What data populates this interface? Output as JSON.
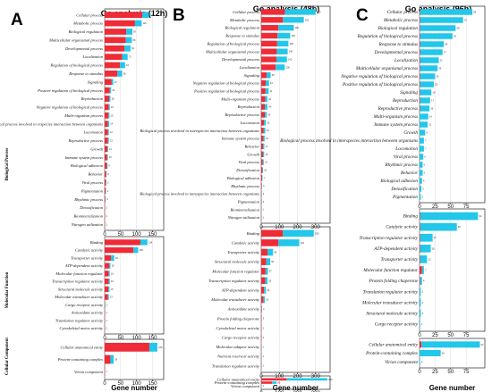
{
  "groups": [
    "Biological Process",
    "Molecular Function",
    "Cellular Component"
  ],
  "colors": {
    "up": "#ee2b36",
    "down": "#22c7ea"
  },
  "xlabel": "Gene number",
  "chart_data": [
    {
      "type": "bar",
      "letter": "A",
      "title": "Go analysis (12h)",
      "xlabel": "Gene number",
      "xticks": [
        0,
        50,
        100,
        150
      ],
      "xlim": [
        0,
        185
      ],
      "sections": [
        {
          "group": "Biological Process",
          "categories": [
            "Cellular process",
            "Metabolic process",
            "Biological regulation",
            "Multicellular organismal process",
            "Developmental process",
            "Localization",
            "Regulation of biological process",
            "Response to stimulus",
            "Signaling",
            "Positive regulation of biological process",
            "Reproduction",
            "Negative regulation of biological process",
            "Multi-organism process",
            "Biological process involved in erspecies interaction between organisms",
            "Locomotion",
            "Reproductive process",
            "Growth",
            "Immune system process",
            "Biological adhesion",
            "Behavior",
            "Viral process",
            "Pigmentation",
            "Rhythmic process",
            "Detoxification",
            "Biomineralization",
            "Nitrogen utilization"
          ],
          "series": [
            {
              "name": "up",
              "values": [
                118,
                95,
                68,
                66,
                62,
                55,
                48,
                40,
                22,
                16,
                14,
                13,
                12,
                10,
                10,
                10,
                9,
                8,
                7,
                5,
                4,
                3,
                2,
                1,
                1,
                1
              ]
            },
            {
              "name": "down",
              "values": [
                21,
                21,
                19,
                19,
                19,
                17,
                16,
                15,
                5,
                4,
                4,
                3,
                3,
                4,
                3,
                3,
                2,
                2,
                2,
                1,
                1,
                1,
                1,
                0,
                0,
                0
              ]
            }
          ]
        },
        {
          "group": "Molecular Function",
          "categories": [
            "Binding",
            "Catalytic activity",
            "Transporter activity",
            "ATP-dependent activity",
            "Molecular function regulator",
            "Transcription regulator activity",
            "Structural molecule activity",
            "Molecular transducer activity",
            "Cargo receptor activity",
            "Antioxidant activity",
            "Translation regulator activity",
            "Cytoskeletal motor activity"
          ],
          "series": [
            {
              "name": "up",
              "values": [
                112,
                90,
                20,
                14,
                13,
                13,
                12,
                10,
                1,
                1,
                1,
                1
              ]
            },
            {
              "name": "down",
              "values": [
                22,
                15,
                10,
                4,
                3,
                3,
                3,
                3,
                1,
                0,
                0,
                0
              ]
            }
          ]
        },
        {
          "group": "Cellular Component",
          "categories": [
            "Cellular anatomical entity",
            "Protein-containing complex",
            "Virion component"
          ],
          "series": [
            {
              "name": "up",
              "values": [
                140,
                18,
                1
              ]
            },
            {
              "name": "down",
              "values": [
                25,
                10,
                0
              ]
            }
          ]
        }
      ]
    },
    {
      "type": "bar",
      "letter": "B",
      "title": "Go analysis (48h)",
      "xlabel": "Gene number",
      "xticks": [
        0,
        100,
        200,
        300
      ],
      "xlim": [
        0,
        380
      ],
      "sections": [
        {
          "group": "Biological Process",
          "categories": [
            "Cellular process",
            "Metabolic process",
            "Biological regulation",
            "Response to stimulus",
            "Regulation of biological process",
            "Multicellular organismal process",
            "Developmental process",
            "Localization",
            "Signaling",
            "Negative regulation of biological process",
            "Positive regulation of biological process",
            "Multi-organism process",
            "Reproduction",
            "Reproductive process",
            "Locomotion",
            "Biological process involved in interspecies interaction between organisms",
            "Immune system process",
            "Behavior",
            "Growth",
            "Viral process",
            "Detoxification",
            "Biological adhesion",
            "Rhythmic process",
            "Biological process involved in intraspecies interaction between organisms",
            "Pigmentation",
            "Biomineralization",
            "Nitrogen utilization"
          ],
          "series": [
            {
              "name": "up",
              "values": [
                130,
                120,
                95,
                90,
                88,
                86,
                84,
                80,
                30,
                25,
                24,
                22,
                20,
                20,
                15,
                14,
                12,
                11,
                10,
                9,
                7,
                5,
                3,
                2,
                2,
                1,
                1
              ]
            },
            {
              "name": "down",
              "values": [
                170,
                115,
                85,
                70,
                62,
                60,
                58,
                50,
                22,
                18,
                17,
                12,
                14,
                10,
                10,
                9,
                7,
                6,
                6,
                5,
                3,
                2,
                1,
                1,
                1,
                0,
                0
              ]
            }
          ]
        },
        {
          "group": "Molecular Function",
          "categories": [
            "Binding",
            "Catalytic activity",
            "Transporter activity",
            "Structural molecule activity",
            "Molecular function regulator",
            "Transcription regulator activity",
            "ATP-dependent activity",
            "Molecular transducer activity",
            "Antioxidant activity",
            "Protein folding chaperone",
            "Cytoskeletal motor activity",
            "Cargo receptor activity",
            "Molecular adaptor activity",
            "Nutrient reservoir activity",
            "Translation regulator activity"
          ],
          "series": [
            {
              "name": "up",
              "values": [
                120,
                95,
                35,
                28,
                24,
                22,
                16,
                12,
                3,
                2,
                2,
                2,
                1,
                1,
                1
              ]
            },
            {
              "name": "down",
              "values": [
                170,
                115,
                30,
                22,
                13,
                13,
                10,
                8,
                1,
                1,
                0,
                0,
                0,
                0,
                0
              ]
            }
          ]
        },
        {
          "group": "Cellular Component",
          "categories": [
            "Cellular anatomical entity",
            "Protein-containing complex",
            "Virion component"
          ],
          "series": [
            {
              "name": "up",
              "values": [
                140,
                60,
                1
              ]
            },
            {
              "name": "down",
              "values": [
                225,
                25,
                0
              ]
            }
          ]
        }
      ]
    },
    {
      "type": "bar",
      "letter": "C",
      "title": "Go analysis (96h)",
      "xlabel": "Gene number",
      "xticks": [
        0,
        25,
        50,
        75
      ],
      "xlim": [
        0,
        105
      ],
      "sections": [
        {
          "group": "Biological Process",
          "categories": [
            "Cellular process",
            "Metabolic process",
            "Biological regulation",
            "Regulation of biological process",
            "Response to stimulus",
            "Developmental process",
            "Localization",
            "Multicellular organismal process",
            "Negative regulation of biological process",
            "Positive regulation of biological process",
            "Signaling",
            "Reproduction",
            "Reproductive process",
            "Multi-organism process",
            "Immune system process",
            "Growth",
            "Biological process involved in interspecies interaction between organisms",
            "Locomotion",
            "Viral process",
            "Rhythmic process",
            "Behavior",
            "Biological adhesion",
            "Detoxification",
            "Pigmentation"
          ],
          "series": [
            {
              "name": "up",
              "values": [
                1,
                1,
                1,
                1,
                1,
                1,
                1,
                1,
                1,
                1,
                1,
                1,
                1,
                0,
                0,
                0,
                0,
                0,
                0,
                0,
                0,
                0,
                0,
                0
              ]
            },
            {
              "name": "down",
              "values": [
                84,
                69,
                57,
                52,
                38,
                36,
                30,
                28,
                24,
                22,
                18,
                16,
                15,
                14,
                13,
                9,
                7,
                7,
                6,
                5,
                5,
                4,
                3,
                2
              ]
            }
          ]
        },
        {
          "group": "Molecular Function",
          "categories": [
            "Binding",
            "Catalytic activity",
            "Transcription regulator activity",
            "ATP-dependent activity",
            "Transporter activity",
            "Molecular function regulator",
            "Protein folding chaperone",
            "Translation regulator activity",
            "Molecular transducer activity",
            "Structural molecule activity",
            "Cargo receptor activity"
          ],
          "series": [
            {
              "name": "up",
              "values": [
                1,
                1,
                1,
                1,
                1,
                4,
                1,
                0,
                0,
                0,
                0
              ]
            },
            {
              "name": "down",
              "values": [
                93,
                59,
                20,
                17,
                11,
                3,
                3,
                2,
                2,
                2,
                1
              ]
            }
          ]
        },
        {
          "group": "Cellular Component",
          "categories": [
            "Cellular anatomical entity",
            "Protein-containing complex",
            "Virion component"
          ],
          "series": [
            {
              "name": "up",
              "values": [
                3,
                0,
                0
              ]
            },
            {
              "name": "down",
              "values": [
                94,
                34,
                1
              ]
            }
          ]
        }
      ]
    }
  ]
}
